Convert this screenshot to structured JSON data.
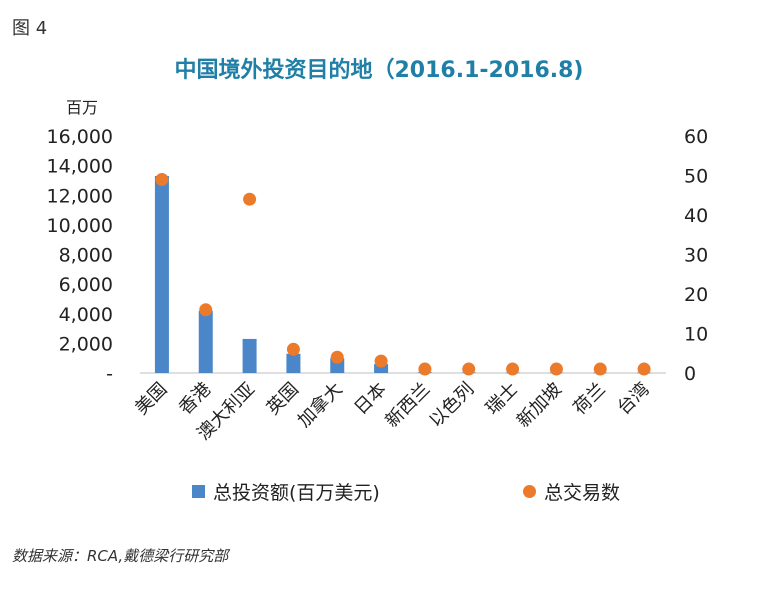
{
  "figure_label": "图 4",
  "source": "数据来源：RCA,戴德梁行研究部",
  "chart_data": {
    "type": "bar",
    "title": "中国境外投资目的地（2016.1-2016.8)",
    "y_left_unit": "百万",
    "categories": [
      "美国",
      "香港",
      "澳大利亚",
      "英国",
      "加拿大",
      "日本",
      "新西兰",
      "以色列",
      "瑞士",
      "新加坡",
      "荷兰",
      "台湾"
    ],
    "y_left_ticks": [
      "-",
      "2,000",
      "4,000",
      "6,000",
      "8,000",
      "10,000",
      "12,000",
      "14,000",
      "16,000"
    ],
    "y_right_ticks": [
      "0",
      "10",
      "20",
      "30",
      "40",
      "50",
      "60"
    ],
    "ylim_left": [
      0,
      16000
    ],
    "ylim_right": [
      0,
      60
    ],
    "grid": false,
    "legend_position": "bottom",
    "series": [
      {
        "name": "总投资额(百万美元)",
        "type": "bar",
        "axis": "left",
        "color": "#4a86c8",
        "values": [
          13300,
          4200,
          2300,
          1300,
          1000,
          600,
          50,
          40,
          30,
          30,
          20,
          20
        ]
      },
      {
        "name": "总交易数",
        "type": "scatter",
        "axis": "right",
        "color": "#ec7a2b",
        "values": [
          49,
          16,
          44,
          6,
          4,
          3,
          1,
          1,
          1,
          1,
          1,
          1
        ]
      }
    ]
  }
}
